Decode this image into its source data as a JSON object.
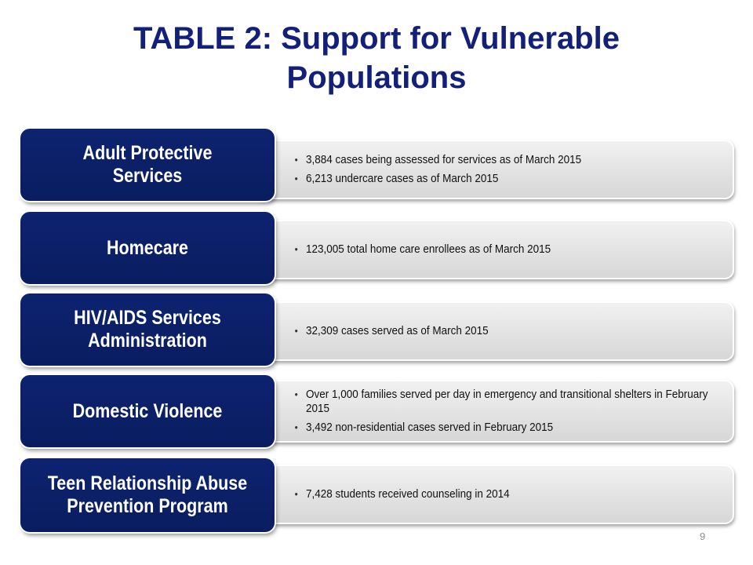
{
  "slide": {
    "title_line1": "TABLE 2: Support for Vulnerable",
    "title_line2": "Populations",
    "page_number": "9"
  },
  "rows": [
    {
      "category": "Adult Protective Services",
      "bullets": [
        "3,884 cases being assessed for services as of March 2015",
        "6,213 undercare cases as of March 2015"
      ]
    },
    {
      "category": "Homecare",
      "bullets": [
        "123,005 total home care enrollees as of March 2015"
      ]
    },
    {
      "category": "HIV/AIDS Services Administration",
      "bullets": [
        "32,309 cases served as of March 2015"
      ]
    },
    {
      "category": "Domestic Violence",
      "bullets": [
        "Over 1,000 families served per day in emergency and transitional shelters in February 2015",
        "3,492 non-residential cases served in February 2015"
      ]
    },
    {
      "category": "Teen Relationship Abuse Prevention Program",
      "bullets": [
        "7,428 students received counseling in 2014"
      ]
    }
  ],
  "colors": {
    "title": "#12207a",
    "category_fill": "#0d2370",
    "details_fill": "#e2e2e2"
  }
}
